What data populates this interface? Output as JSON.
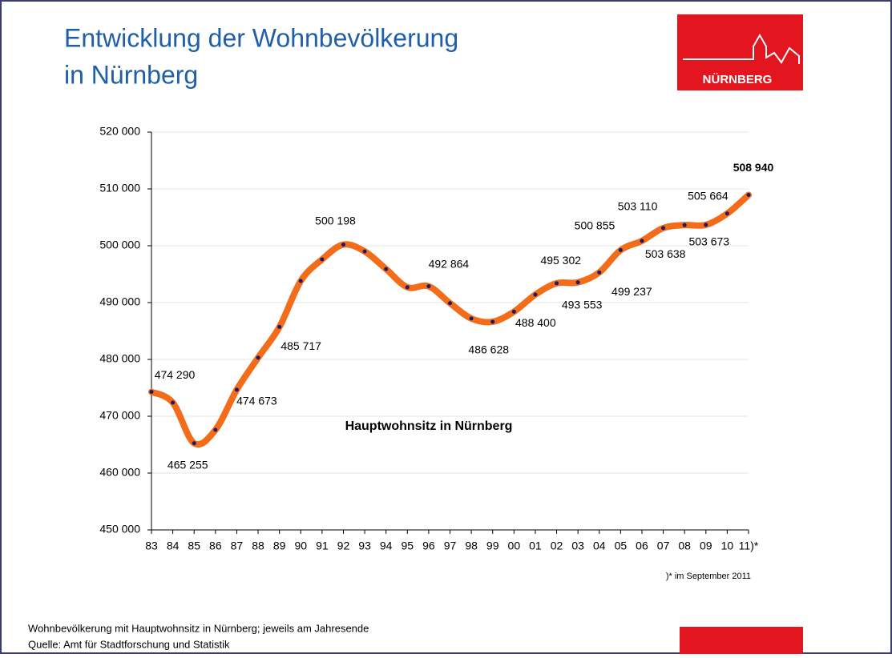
{
  "chart_data": {
    "type": "line",
    "title": "Entwicklung der Wohnbevölkerung",
    "subtitle": "in Nürnberg",
    "logo": "NÜRNBERG",
    "annotation": "Hauptwohnsitz in Nürnberg",
    "footnote": ")* im September 2011",
    "notes": [
      "Wohnbevölkerung mit Hauptwohnsitz in Nürnberg; jeweils am Jahresende",
      "Quelle:  Amt für Stadtforschung und  Statistik"
    ],
    "categories": [
      "83",
      "84",
      "85",
      "86",
      "87",
      "88",
      "89",
      "90",
      "91",
      "92",
      "93",
      "94",
      "95",
      "96",
      "97",
      "98",
      "99",
      "00",
      "01",
      "02",
      "03",
      "04",
      "05",
      "06",
      "07",
      "08",
      "09",
      "10",
      "11)*"
    ],
    "series": [
      {
        "name": "Hauptwohnsitz in Nürnberg",
        "color": "#f26c1a",
        "values": [
          474290,
          472400,
          465255,
          467600,
          474673,
          480300,
          485717,
          493800,
          497600,
          500198,
          499000,
          495900,
          492700,
          492864,
          489900,
          487200,
          486628,
          488400,
          491400,
          493400,
          493553,
          495302,
          499237,
          500855,
          503110,
          503638,
          503673,
          505664,
          508940
        ],
        "value_labels": [
          "474 290",
          null,
          "465 255",
          null,
          "474 673",
          null,
          "485 717",
          null,
          null,
          "500 198",
          null,
          null,
          null,
          "492 864",
          null,
          null,
          "486 628",
          "488 400",
          null,
          null,
          "493 553",
          "495 302",
          "499 237",
          "500 855",
          "503 110",
          "503 638",
          "503 673",
          "505 664",
          "508 940"
        ]
      }
    ],
    "ylim": [
      450000,
      520000
    ],
    "yticks": [
      {
        "value": 450000,
        "label": "450 000"
      },
      {
        "value": 460000,
        "label": "460 000"
      },
      {
        "value": 470000,
        "label": "470 000"
      },
      {
        "value": 480000,
        "label": "480 000"
      },
      {
        "value": 490000,
        "label": "490 000"
      },
      {
        "value": 500000,
        "label": "500 000"
      },
      {
        "value": 510000,
        "label": "510 000"
      },
      {
        "value": 520000,
        "label": "520 000"
      }
    ],
    "grid": true
  }
}
